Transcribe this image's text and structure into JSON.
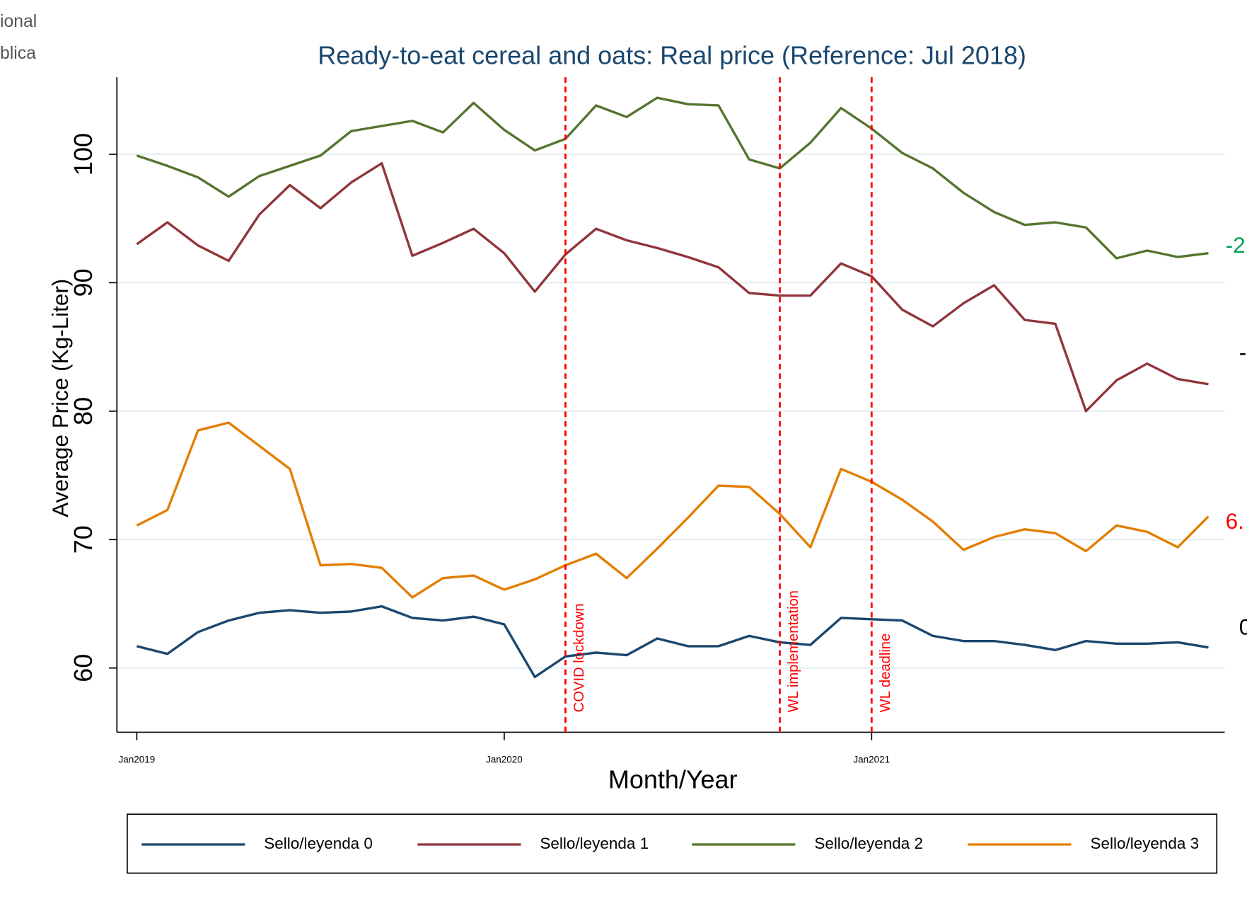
{
  "header_fragments": [
    "ional",
    "blica"
  ],
  "chart_data": {
    "type": "line",
    "title": "Ready-to-eat cereal and oats: Real price (Reference: Jul 2018)",
    "x_label": "Month/Year",
    "y_label": "Average Price (Kg-Liter)",
    "categories": [
      "Jan2019",
      null,
      null,
      null,
      null,
      null,
      null,
      null,
      null,
      null,
      null,
      null,
      "Jan2020",
      null,
      null,
      null,
      null,
      null,
      null,
      null,
      null,
      null,
      null,
      null,
      "Jan2021",
      null,
      null,
      null,
      null,
      null,
      null,
      null,
      null,
      null,
      null,
      null
    ],
    "ylim": [
      55,
      106
    ],
    "yticks": [
      60,
      70,
      80,
      90,
      100
    ],
    "grid": true,
    "series": [
      {
        "name": "Sello/leyenda 0",
        "color": "#1a476f",
        "values": [
          61.7,
          61.1,
          62.8,
          63.7,
          64.3,
          64.5,
          64.3,
          64.4,
          64.8,
          63.9,
          63.7,
          64.0,
          63.4,
          59.3,
          60.9,
          61.2,
          61.0,
          62.3,
          61.7,
          61.7,
          62.5,
          62.0,
          61.8,
          63.9,
          63.8,
          63.7,
          62.5,
          62.1,
          62.1,
          61.8,
          61.4,
          62.1,
          61.9,
          61.9,
          62.0,
          61.6
        ]
      },
      {
        "name": "Sello/leyenda 1",
        "color": "#90353b",
        "values": [
          93.0,
          94.7,
          92.9,
          91.7,
          95.3,
          97.6,
          95.8,
          97.8,
          99.3,
          92.1,
          93.1,
          94.2,
          92.3,
          89.3,
          92.2,
          94.2,
          93.3,
          92.7,
          92.0,
          91.2,
          89.2,
          89.0,
          89.0,
          91.5,
          90.5,
          87.9,
          86.6,
          88.4,
          89.8,
          87.1,
          86.8,
          80.0,
          82.4,
          83.7,
          82.5,
          82.1
        ]
      },
      {
        "name": "Sello/leyenda 2",
        "color": "#55752f",
        "values": [
          99.9,
          99.1,
          98.2,
          96.7,
          98.3,
          99.1,
          99.9,
          101.8,
          102.2,
          102.6,
          101.7,
          104.0,
          101.9,
          100.3,
          101.2,
          103.8,
          102.9,
          104.4,
          103.9,
          103.8,
          99.6,
          98.9,
          100.9,
          103.6,
          102.0,
          100.1,
          98.9,
          97.0,
          95.5,
          94.5,
          94.7,
          94.3,
          91.9,
          92.5,
          92.0,
          92.3
        ]
      },
      {
        "name": "Sello/leyenda 3",
        "color": "#e37e00",
        "values": [
          71.1,
          72.3,
          78.5,
          79.1,
          77.3,
          75.5,
          68.0,
          68.1,
          67.8,
          65.5,
          67.0,
          67.2,
          66.1,
          66.9,
          68.0,
          68.9,
          67.0,
          69.3,
          71.7,
          74.2,
          74.1,
          72.0,
          69.4,
          75.5,
          74.5,
          73.1,
          71.4,
          69.2,
          70.2,
          70.8,
          70.5,
          69.1,
          71.1,
          70.6,
          69.4,
          71.8
        ]
      }
    ],
    "annotations": [
      {
        "text": "COVID lockdown",
        "x_index": 14,
        "color": "#ff0000"
      },
      {
        "text": "WL implementation",
        "x_index": 21,
        "color": "#ff0000"
      },
      {
        "text": "WL deadline",
        "x_index": 24,
        "color": "#ff0000"
      }
    ],
    "side_labels": [
      {
        "text": "-2",
        "color": "#00a050"
      },
      {
        "text": "-",
        "color": "#000000"
      },
      {
        "text": "6.",
        "color": "#ff0000"
      },
      {
        "text": "0",
        "color": "#000000"
      }
    ]
  }
}
